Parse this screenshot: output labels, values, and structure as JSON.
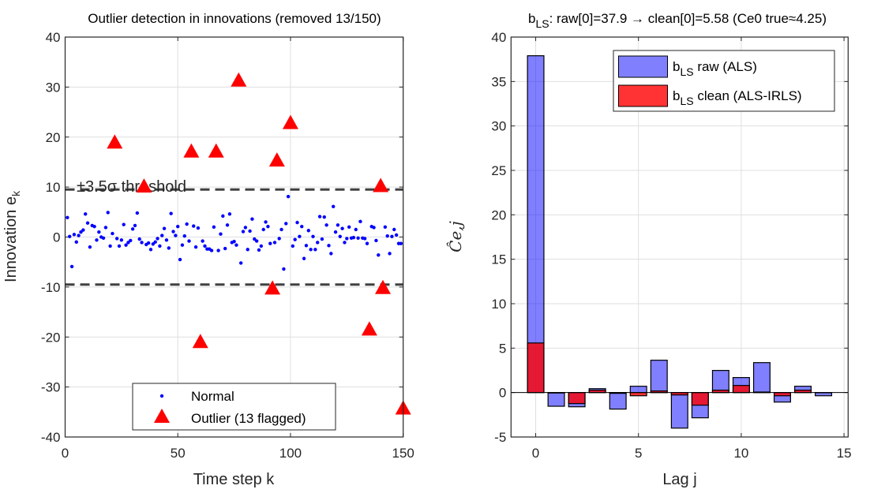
{
  "chart_data": [
    {
      "type": "scatter",
      "title": "Outlier detection in innovations  (removed 13/150)",
      "xlabel": "Time step k",
      "ylabel": {
        "base": "Innovation e",
        "sub": "k"
      },
      "xlim": [
        0,
        150
      ],
      "ylim": [
        -40,
        40
      ],
      "xticks": [
        0,
        50,
        100,
        150
      ],
      "yticks": [
        -40,
        -30,
        -20,
        -10,
        0,
        10,
        20,
        30,
        40
      ],
      "grid": true,
      "legend_position": "bottom-center",
      "threshold": {
        "value": 9.5,
        "label": "±3.5σ threshold",
        "color": "#404040"
      },
      "series": [
        {
          "name": "Normal",
          "color": "#0000ff",
          "marker": "dot",
          "x": [
            1,
            2,
            3,
            4,
            5,
            6,
            7,
            8,
            9,
            10,
            11,
            12,
            13,
            14,
            15,
            16,
            17,
            18,
            19,
            20,
            21,
            23,
            24,
            25,
            26,
            27,
            28,
            29,
            30,
            31,
            32,
            33,
            34,
            36,
            37,
            38,
            39,
            40,
            41,
            42,
            43,
            44,
            45,
            46,
            47,
            48,
            49,
            50,
            51,
            52,
            53,
            54,
            55,
            57,
            58,
            59,
            61,
            62,
            63,
            64,
            65,
            66,
            68,
            69,
            70,
            71,
            72,
            73,
            74,
            75,
            76,
            78,
            79,
            80,
            81,
            82,
            83,
            84,
            85,
            86,
            87,
            88,
            89,
            90,
            91,
            93,
            95,
            96,
            97,
            98,
            99,
            101,
            102,
            103,
            104,
            105,
            106,
            107,
            108,
            109,
            110,
            111,
            112,
            113,
            114,
            115,
            116,
            117,
            118,
            119,
            120,
            121,
            122,
            123,
            124,
            125,
            126,
            127,
            128,
            129,
            130,
            131,
            132,
            133,
            134,
            136,
            137,
            138,
            139,
            142,
            143,
            144,
            145,
            146,
            147,
            148,
            149
          ],
          "y": [
            3.9,
            0.1,
            -5.9,
            0.5,
            -1.0,
            0.3,
            1.0,
            1.4,
            4.6,
            2.8,
            -2.0,
            2.3,
            2.1,
            -0.6,
            1.0,
            0.0,
            -0.2,
            1.9,
            4.9,
            -1.8,
            0.7,
            -0.3,
            -1.8,
            -0.6,
            2.5,
            -1.6,
            -1.1,
            -0.7,
            1.6,
            2.3,
            4.8,
            -0.4,
            -1.1,
            -1.5,
            -1.2,
            -2.5,
            -1.4,
            -1.0,
            -0.3,
            -1.8,
            0.3,
            1.7,
            -0.6,
            -2.2,
            4.7,
            1.1,
            0.3,
            2.1,
            -4.5,
            -1.6,
            0.2,
            2.6,
            -0.8,
            2.2,
            -2.0,
            1.8,
            -0.8,
            -1.8,
            -2.4,
            -2.4,
            -2.7,
            2.0,
            -2.7,
            0.6,
            4.2,
            -2.3,
            2.4,
            4.6,
            -1.1,
            -0.9,
            -1.6,
            -5.2,
            1.1,
            1.9,
            -2.5,
            1.2,
            3.6,
            -0.4,
            -0.8,
            -2.6,
            -1.8,
            1.5,
            3.0,
            2.1,
            -1.3,
            -1.1,
            -0.3,
            1.5,
            -6.4,
            2.7,
            8.1,
            -1.8,
            -0.5,
            2.9,
            0.1,
            2.1,
            -4.3,
            -1.7,
            1.3,
            -2.5,
            0.1,
            -2.5,
            -1.1,
            4.1,
            -0.4,
            4.0,
            2.4,
            -1.7,
            -3.3,
            6.1,
            1.0,
            2.4,
            0.1,
            1.7,
            -1.1,
            -0.3,
            2.0,
            -0.2,
            -0.1,
            1.5,
            -0.2,
            3.1,
            -0.2,
            -0.3,
            -1.3,
            2.1,
            1.9,
            -0.7,
            -3.6,
            2.0,
            0.2,
            -3.3,
            0.1,
            1.5,
            0.4,
            -1.3,
            -1.3
          ]
        },
        {
          "name": "Outlier (13 flagged)",
          "color": "#ff0000",
          "marker": "triangle",
          "x": [
            22,
            35,
            56,
            60,
            67,
            77,
            92,
            94,
            100,
            135,
            140,
            141,
            150
          ],
          "y": [
            18.8,
            10.0,
            17.0,
            -21.1,
            17.0,
            31.2,
            -10.4,
            15.2,
            22.7,
            -18.6,
            10.1,
            -10.3,
            -34.4
          ]
        }
      ]
    },
    {
      "type": "bar",
      "title": {
        "base": "b",
        "sub": "LS",
        "rest": ": raw[0]=37.9  →  clean[0]=5.58  (Ce0 true≈4.25)"
      },
      "xlabel": "Lag j",
      "ylabel": "Ĉe,j",
      "xlim": [
        -1.2,
        15.2
      ],
      "ylim": [
        -5,
        40
      ],
      "xticks": [
        0,
        5,
        10,
        15
      ],
      "yticks": [
        -5,
        0,
        5,
        10,
        15,
        20,
        25,
        30,
        35,
        40
      ],
      "grid": true,
      "legend_position": "top-right",
      "categories": [
        0,
        1,
        2,
        3,
        4,
        5,
        6,
        7,
        8,
        9,
        10,
        11,
        12,
        13,
        14
      ],
      "series": [
        {
          "name": {
            "base": "b",
            "sub": "LS",
            "rest": " raw (ALS)"
          },
          "color": "#8080ff",
          "values": [
            37.9,
            -1.54,
            -1.6,
            0.44,
            -1.86,
            0.71,
            3.64,
            -4.0,
            -2.84,
            2.49,
            1.69,
            3.37,
            -1.07,
            0.71,
            -0.36
          ]
        },
        {
          "name": {
            "base": "b",
            "sub": "LS",
            "rest": " clean (ALS-IRLS)"
          },
          "color": "#ff3333",
          "values": [
            5.58,
            -0.05,
            -1.24,
            0.27,
            -0.09,
            -0.36,
            0.18,
            -0.27,
            -1.42,
            0.27,
            0.8,
            0.06,
            -0.36,
            0.27,
            -0.02
          ]
        }
      ]
    }
  ]
}
